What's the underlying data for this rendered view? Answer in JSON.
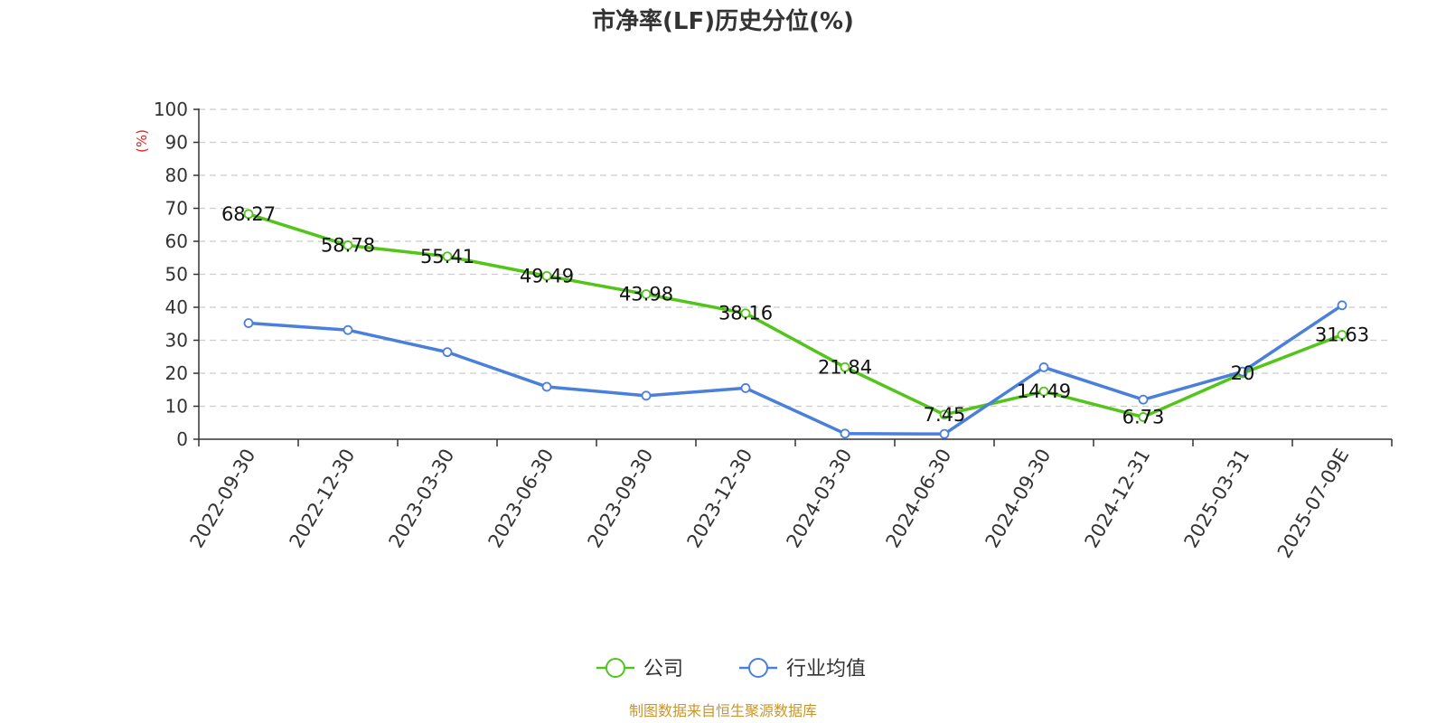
{
  "chart_data": {
    "type": "line",
    "title": "市净率(LF)历史分位(%)",
    "y_unit": "(%)",
    "categories": [
      "2022-09-30",
      "2022-12-30",
      "2023-03-30",
      "2023-06-30",
      "2023-09-30",
      "2023-12-30",
      "2024-03-30",
      "2024-06-30",
      "2024-09-30",
      "2024-12-31",
      "2025-03-31",
      "2025-07-09E"
    ],
    "series": [
      {
        "name": "公司",
        "color": "#52c41a",
        "values": [
          68.27,
          58.78,
          55.41,
          49.49,
          43.98,
          38.16,
          21.84,
          7.45,
          14.49,
          6.73,
          20,
          31.63
        ],
        "labels_shown": true
      },
      {
        "name": "行业均值",
        "color": "#4a7fdc",
        "values": [
          35.2,
          33.1,
          26.4,
          15.9,
          13.2,
          15.5,
          1.7,
          1.6,
          21.8,
          12.0,
          20.5,
          40.6
        ],
        "labels_shown": false
      }
    ],
    "ylim": [
      0,
      100
    ],
    "yticks": [
      0,
      10,
      20,
      30,
      40,
      50,
      60,
      70,
      80,
      90,
      100
    ],
    "grid": true,
    "legend_position": "bottom-center"
  },
  "source_text": "制图数据来自恒生聚源数据库",
  "colors": {
    "source": "#c8962b",
    "unit": "#e02020",
    "axis": "#333333",
    "grid": "#cccccc"
  }
}
